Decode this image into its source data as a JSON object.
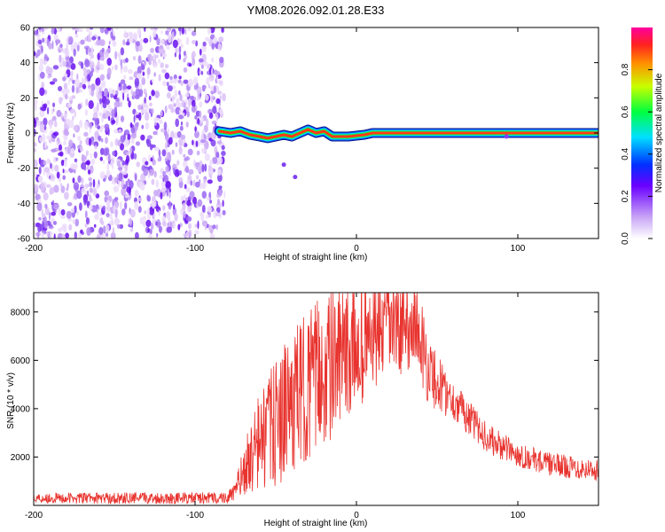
{
  "title": "YM08.2026.092.01.28.E33",
  "chart_data": [
    {
      "type": "heatmap",
      "xlabel": "Height of straight line (km)",
      "ylabel": "Frequency (Hz)",
      "xlim": [
        -200,
        150
      ],
      "ylim": [
        -60,
        60
      ],
      "xticks": [
        -200,
        -100,
        0,
        100
      ],
      "yticks": [
        60,
        40,
        20,
        0,
        -20,
        -40,
        -60
      ],
      "noise_region_x": [
        -200,
        -85
      ],
      "signal_line": {
        "x_start": -85,
        "x_end": 150,
        "freq_hz": 0,
        "curve_points": [
          {
            "x": -85,
            "y": 1
          },
          {
            "x": -78,
            "y": 0
          },
          {
            "x": -72,
            "y": 1
          },
          {
            "x": -66,
            "y": -1
          },
          {
            "x": -60,
            "y": -2
          },
          {
            "x": -55,
            "y": -3
          },
          {
            "x": -50,
            "y": -2
          },
          {
            "x": -45,
            "y": -1
          },
          {
            "x": -40,
            "y": -2
          },
          {
            "x": -35,
            "y": 0
          },
          {
            "x": -30,
            "y": 2
          },
          {
            "x": -25,
            "y": 0
          },
          {
            "x": -20,
            "y": 1
          },
          {
            "x": -15,
            "y": -2
          },
          {
            "x": -5,
            "y": -2
          },
          {
            "x": 5,
            "y": -1
          },
          {
            "x": 10,
            "y": 0
          },
          {
            "x": 150,
            "y": 0
          }
        ]
      },
      "stray_points": [
        {
          "x": -45,
          "y": -18
        },
        {
          "x": -38,
          "y": -25
        },
        {
          "x": 93,
          "y": -2
        }
      ],
      "colorbar": {
        "label": "Normalized spectral amplitude",
        "range": [
          0,
          1
        ],
        "ticks": [
          0.0,
          0.2,
          0.4,
          0.6,
          0.8
        ],
        "tick_labels": [
          "0.0",
          "0.2",
          "0.4",
          "0.6",
          "0.8"
        ]
      }
    },
    {
      "type": "line",
      "xlabel": "Height of straight line (km)",
      "ylabel": "SNR (10 * v/v)",
      "xlim": [
        -200,
        150
      ],
      "ylim": [
        0,
        8800
      ],
      "xticks": [
        -200,
        -100,
        0,
        100
      ],
      "yticks": [
        2000,
        4000,
        6000,
        8000
      ],
      "color": "#e8332e",
      "series": [
        {
          "name": "SNR",
          "noise_amplitude": [
            {
              "x": -200,
              "y": 220
            },
            {
              "x": -80,
              "y": 250
            },
            {
              "x": -75,
              "y": 400
            },
            {
              "x": -60,
              "y": 2200
            },
            {
              "x": -40,
              "y": 3000
            },
            {
              "x": -20,
              "y": 3200
            },
            {
              "x": 0,
              "y": 2600
            },
            {
              "x": 20,
              "y": 2200
            },
            {
              "x": 40,
              "y": 1700
            },
            {
              "x": 60,
              "y": 800
            },
            {
              "x": 100,
              "y": 500
            },
            {
              "x": 150,
              "y": 450
            }
          ],
          "envelope": [
            {
              "x": -200,
              "y": 300
            },
            {
              "x": -100,
              "y": 300
            },
            {
              "x": -80,
              "y": 320
            },
            {
              "x": -76,
              "y": 500
            },
            {
              "x": -70,
              "y": 1400
            },
            {
              "x": -60,
              "y": 2600
            },
            {
              "x": -50,
              "y": 3400
            },
            {
              "x": -40,
              "y": 4200
            },
            {
              "x": -30,
              "y": 5000
            },
            {
              "x": -20,
              "y": 5600
            },
            {
              "x": -10,
              "y": 6000
            },
            {
              "x": 0,
              "y": 6500
            },
            {
              "x": 10,
              "y": 7000
            },
            {
              "x": 20,
              "y": 7500
            },
            {
              "x": 30,
              "y": 7400
            },
            {
              "x": 35,
              "y": 7600
            },
            {
              "x": 40,
              "y": 6800
            },
            {
              "x": 45,
              "y": 5500
            },
            {
              "x": 55,
              "y": 4700
            },
            {
              "x": 65,
              "y": 4000
            },
            {
              "x": 75,
              "y": 3200
            },
            {
              "x": 85,
              "y": 2600
            },
            {
              "x": 100,
              "y": 2100
            },
            {
              "x": 120,
              "y": 1700
            },
            {
              "x": 150,
              "y": 1450
            }
          ]
        }
      ]
    }
  ]
}
